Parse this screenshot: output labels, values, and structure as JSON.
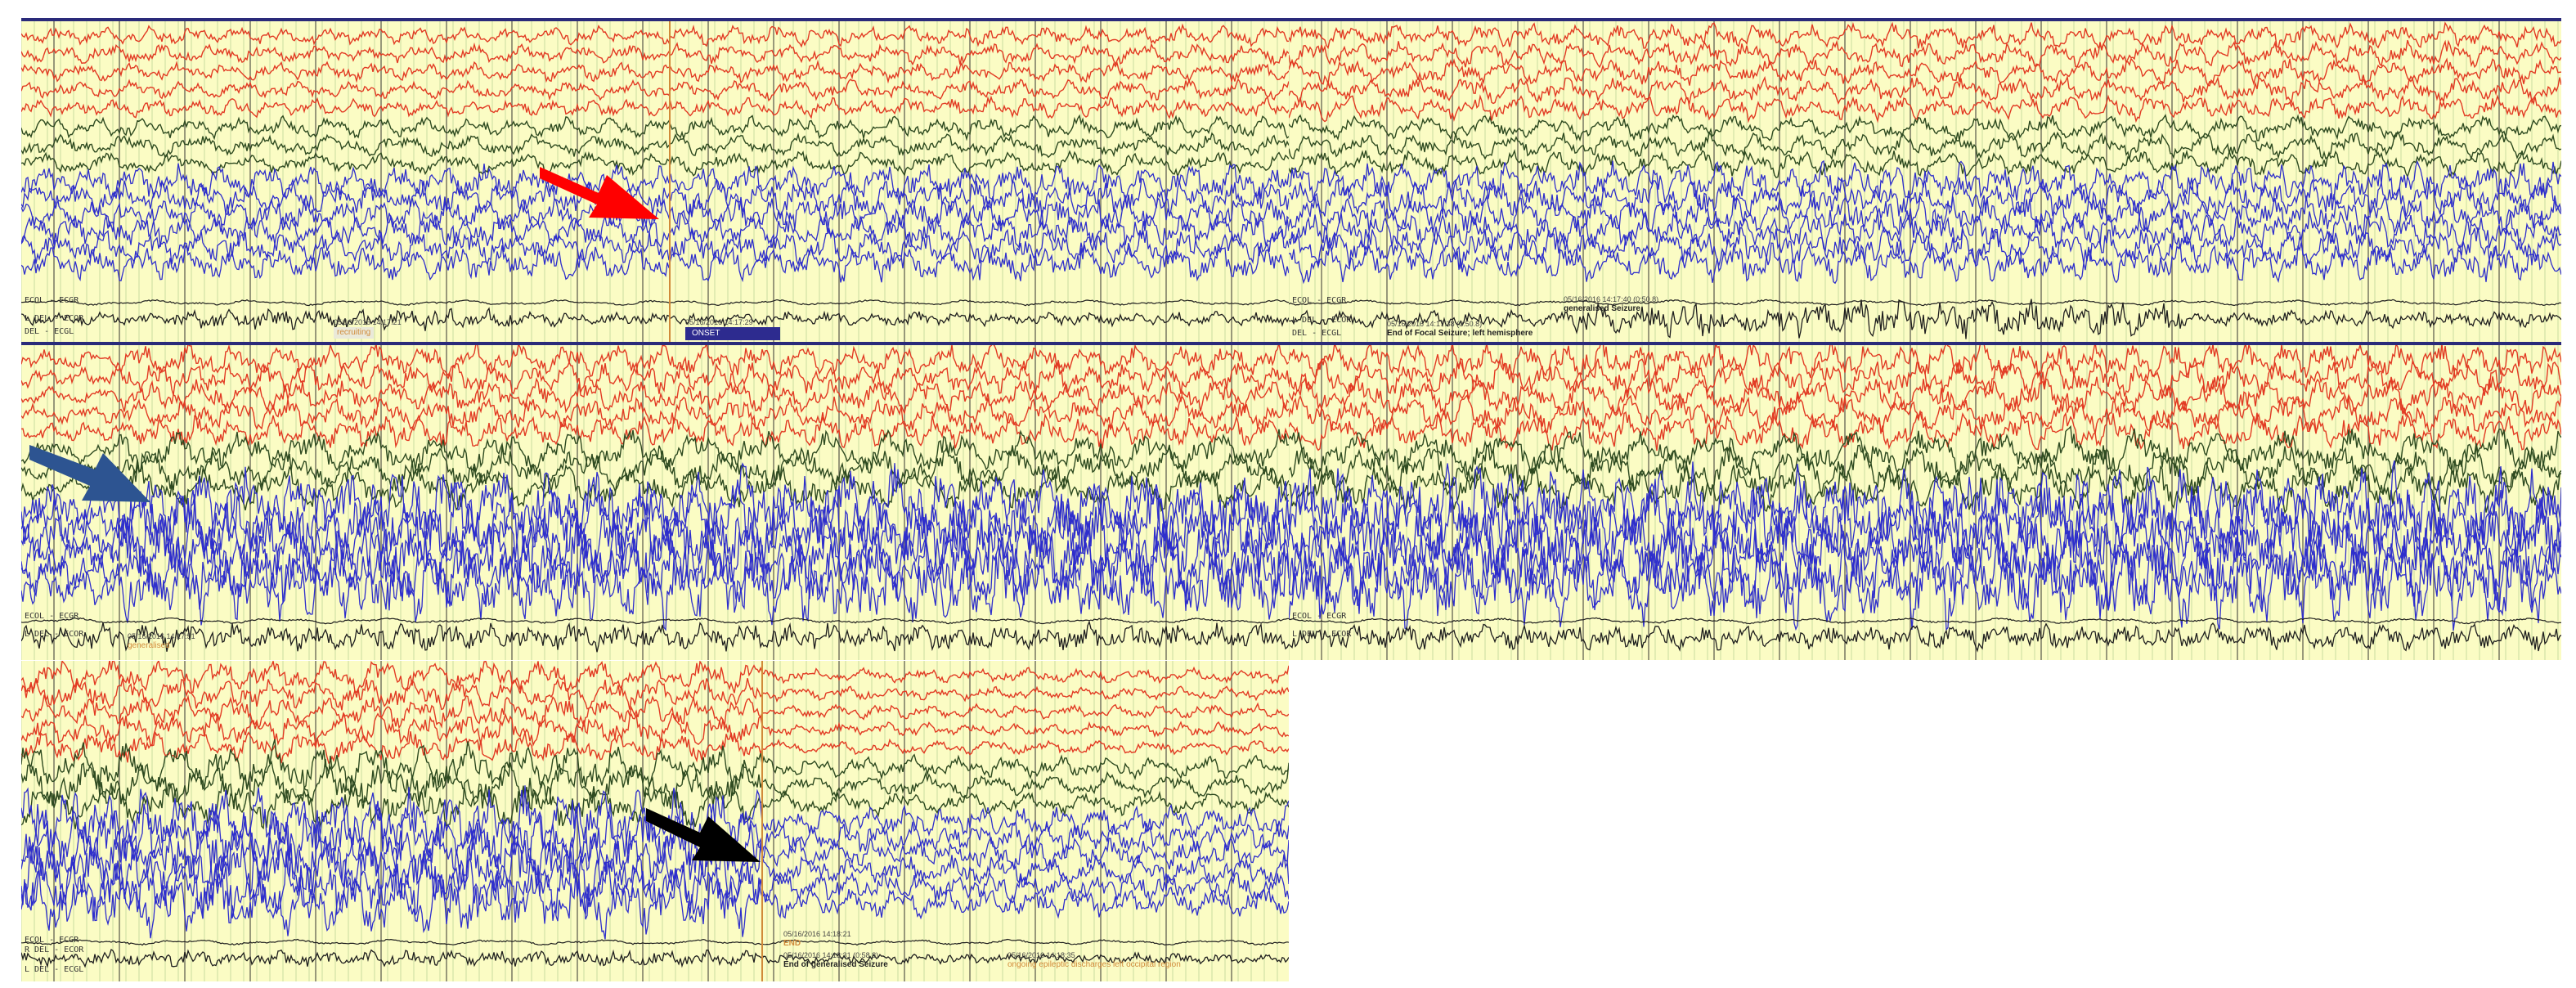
{
  "colors": {
    "background": "#fbfcc4",
    "frontal_channels": "#e23a23",
    "central_channels": "#2e4a20",
    "posterior_channels": "#2e2ecc",
    "ecog_channels": "#1e1e1e",
    "red_arrow": "#ff0000",
    "blue_arrow": "#2d5491",
    "black_arrow": "#000000"
  },
  "ecog_labels": {
    "left_del": "L DEL - ECOR",
    "right_del": "R DEL - ECOR",
    "left_del_ecgl": "L DEL - ECGL",
    "ecgl": "DEL - ECGL",
    "ecol_ecgr": "ECOL - ECGR"
  },
  "panel1": {
    "recruiting_time": "05/16/2016 14:17:21",
    "recruiting_label": "recruiting",
    "onset_time": "05/16/2016 14:17:29",
    "onset_label": "ONSET"
  },
  "panel2": {
    "end_focal_time": "05/16/2016 14:17:38 (0:50.8)",
    "end_focal_label": "End of Focal Seizure; left hemisphere",
    "generalised_time": "05/16/2016 14:17:40 (0:50.8)",
    "generalised_label": "generalised Seizure"
  },
  "panel3": {
    "generalised_time": "05/16/2016 14:17:51",
    "generalised_label": "generalised"
  },
  "panel5": {
    "end_time": "05/16/2016 14:18:21",
    "end_label": "END",
    "end_gen_time": "05/16/2016 14:18:31 (0:58.8)",
    "end_gen_label": "End of generalised Seizure",
    "ongoing_time": "05/16/2016 14:18:35",
    "ongoing_label": "ongoing epileptic discharges left occipital region"
  },
  "arrows": {
    "red": "red-arrow",
    "blue": "blue-arrow",
    "black": "black-arrow"
  }
}
